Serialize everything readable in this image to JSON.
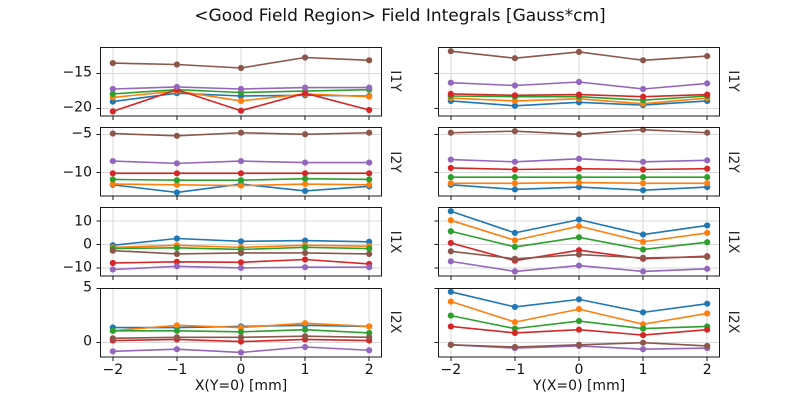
{
  "title": "<Good Field Region> Field Integrals [Gauss*cm]",
  "xticks": [
    {
      "value": -2,
      "label": "−2"
    },
    {
      "value": -1,
      "label": "−1"
    },
    {
      "value": 0,
      "label": "0"
    },
    {
      "value": 1,
      "label": "1"
    },
    {
      "value": 2,
      "label": "2"
    }
  ],
  "chart_data": [
    {
      "type": "line",
      "row_label": "I1Y",
      "col": "left",
      "x": [
        -2,
        -1,
        0,
        1,
        2
      ],
      "xlim": [
        -2.2,
        2.2
      ],
      "ylim": [
        -21.1,
        -11.2
      ],
      "yticks": [
        {
          "value": -15,
          "label": "−15"
        },
        {
          "value": -20,
          "label": "−20"
        }
      ],
      "show_ytick_labels": true,
      "show_xtick_labels": false,
      "series": [
        {
          "name": "series-blue",
          "color": "#1f77b4",
          "values": [
            -19.0,
            -17.8,
            -18.2,
            -18.1,
            -18.2
          ]
        },
        {
          "name": "series-orange",
          "color": "#ff7f0e",
          "values": [
            -18.4,
            -17.5,
            -18.9,
            -17.9,
            -18.3
          ]
        },
        {
          "name": "series-green",
          "color": "#2ca02c",
          "values": [
            -17.9,
            -17.3,
            -17.7,
            -17.5,
            -17.3
          ]
        },
        {
          "name": "series-red",
          "color": "#d62728",
          "values": [
            -20.4,
            -17.3,
            -20.3,
            -17.8,
            -20.2
          ]
        },
        {
          "name": "series-purple",
          "color": "#9467bd",
          "values": [
            -17.2,
            -16.9,
            -17.2,
            -17.0,
            -17.0
          ]
        },
        {
          "name": "series-brown",
          "color": "#8c564b",
          "values": [
            -13.5,
            -13.7,
            -14.2,
            -12.7,
            -13.1
          ]
        }
      ]
    },
    {
      "type": "line",
      "row_label": "I1Y",
      "col": "right",
      "x": [
        -2,
        -1,
        0,
        1,
        2
      ],
      "xlim": [
        -2.2,
        2.2
      ],
      "ylim": [
        -21.1,
        -11.2
      ],
      "yticks": [
        {
          "value": -15,
          "label": "−15"
        },
        {
          "value": -20,
          "label": "−20"
        }
      ],
      "show_ytick_labels": false,
      "show_xtick_labels": false,
      "series": [
        {
          "name": "series-blue",
          "color": "#1f77b4",
          "values": [
            -18.9,
            -19.6,
            -19.1,
            -19.5,
            -18.9
          ]
        },
        {
          "name": "series-orange",
          "color": "#ff7f0e",
          "values": [
            -18.5,
            -18.9,
            -18.6,
            -19.3,
            -18.5
          ]
        },
        {
          "name": "series-green",
          "color": "#2ca02c",
          "values": [
            -18.2,
            -18.3,
            -18.3,
            -18.8,
            -18.2
          ]
        },
        {
          "name": "series-red",
          "color": "#d62728",
          "values": [
            -17.9,
            -18.1,
            -18.0,
            -18.3,
            -18.0
          ]
        },
        {
          "name": "series-purple",
          "color": "#9467bd",
          "values": [
            -16.3,
            -16.7,
            -16.2,
            -17.2,
            -16.4
          ]
        },
        {
          "name": "series-brown",
          "color": "#8c564b",
          "values": [
            -11.8,
            -12.8,
            -11.9,
            -13.1,
            -12.5
          ]
        }
      ]
    },
    {
      "type": "line",
      "row_label": "I2Y",
      "col": "left",
      "x": [
        -2,
        -1,
        0,
        1,
        2
      ],
      "xlim": [
        -2.2,
        2.2
      ],
      "ylim": [
        -13.1,
        -4.05
      ],
      "yticks": [
        {
          "value": -5,
          "label": "−5"
        },
        {
          "value": -10,
          "label": "−10"
        }
      ],
      "show_ytick_labels": true,
      "show_xtick_labels": false,
      "series": [
        {
          "name": "series-blue",
          "color": "#1f77b4",
          "values": [
            -11.6,
            -12.6,
            -11.5,
            -12.4,
            -11.8
          ]
        },
        {
          "name": "series-orange",
          "color": "#ff7f0e",
          "values": [
            -11.5,
            -11.6,
            -11.7,
            -11.5,
            -11.6
          ]
        },
        {
          "name": "series-green",
          "color": "#2ca02c",
          "values": [
            -10.9,
            -11.0,
            -11.0,
            -10.8,
            -10.9
          ]
        },
        {
          "name": "series-red",
          "color": "#d62728",
          "values": [
            -10.1,
            -10.1,
            -10.1,
            -10.1,
            -10.1
          ]
        },
        {
          "name": "series-purple",
          "color": "#9467bd",
          "values": [
            -8.5,
            -8.8,
            -8.5,
            -8.7,
            -8.7
          ]
        },
        {
          "name": "series-brown",
          "color": "#8c564b",
          "values": [
            -4.9,
            -5.2,
            -4.8,
            -5.0,
            -4.8
          ]
        }
      ]
    },
    {
      "type": "line",
      "row_label": "I2Y",
      "col": "right",
      "x": [
        -2,
        -1,
        0,
        1,
        2
      ],
      "xlim": [
        -2.2,
        2.2
      ],
      "ylim": [
        -13.1,
        -4.05
      ],
      "yticks": [
        {
          "value": -5,
          "label": "−5"
        },
        {
          "value": -10,
          "label": "−10"
        }
      ],
      "show_ytick_labels": false,
      "show_xtick_labels": false,
      "series": [
        {
          "name": "series-blue",
          "color": "#1f77b4",
          "values": [
            -11.6,
            -12.2,
            -11.9,
            -12.3,
            -11.9
          ]
        },
        {
          "name": "series-orange",
          "color": "#ff7f0e",
          "values": [
            -11.4,
            -11.4,
            -11.3,
            -11.4,
            -11.4
          ]
        },
        {
          "name": "series-green",
          "color": "#2ca02c",
          "values": [
            -10.6,
            -10.6,
            -10.6,
            -10.6,
            -10.6
          ]
        },
        {
          "name": "series-red",
          "color": "#d62728",
          "values": [
            -9.4,
            -9.6,
            -9.5,
            -9.6,
            -9.5
          ]
        },
        {
          "name": "series-purple",
          "color": "#9467bd",
          "values": [
            -8.3,
            -8.6,
            -8.2,
            -8.6,
            -8.4
          ]
        },
        {
          "name": "series-brown",
          "color": "#8c564b",
          "values": [
            -4.8,
            -4.6,
            -5.0,
            -4.4,
            -4.8
          ]
        }
      ]
    },
    {
      "type": "line",
      "row_label": "I1X",
      "col": "left",
      "x": [
        -2,
        -1,
        0,
        1,
        2
      ],
      "xlim": [
        -2.2,
        2.2
      ],
      "ylim": [
        -13.6,
        16.1
      ],
      "yticks": [
        {
          "value": 10,
          "label": "10"
        },
        {
          "value": 0,
          "label": "0"
        },
        {
          "value": -10,
          "label": "−10"
        }
      ],
      "show_ytick_labels": true,
      "show_xtick_labels": false,
      "series": [
        {
          "name": "series-blue",
          "color": "#1f77b4",
          "values": [
            -0.3,
            2.6,
            1.4,
            1.7,
            1.2
          ]
        },
        {
          "name": "series-orange",
          "color": "#ff7f0e",
          "values": [
            -1.2,
            -0.3,
            -1.2,
            -0.3,
            -0.7
          ]
        },
        {
          "name": "series-green",
          "color": "#2ca02c",
          "values": [
            -1.7,
            -1.4,
            -2.1,
            -1.2,
            -1.7
          ]
        },
        {
          "name": "series-red",
          "color": "#d62728",
          "values": [
            -7.9,
            -7.4,
            -7.6,
            -6.4,
            -8.3
          ]
        },
        {
          "name": "series-purple",
          "color": "#9467bd",
          "values": [
            -10.7,
            -9.3,
            -10.0,
            -9.7,
            -9.7
          ]
        },
        {
          "name": "series-brown",
          "color": "#8c564b",
          "values": [
            -2.6,
            -4.0,
            -3.6,
            -3.6,
            -4.0
          ]
        }
      ]
    },
    {
      "type": "line",
      "row_label": "I1X",
      "col": "right",
      "x": [
        -2,
        -1,
        0,
        1,
        2
      ],
      "xlim": [
        -2.2,
        2.2
      ],
      "ylim": [
        -13.6,
        16.1
      ],
      "yticks": [
        {
          "value": 10,
          "label": "10"
        },
        {
          "value": 0,
          "label": "0"
        },
        {
          "value": -10,
          "label": "−10"
        }
      ],
      "show_ytick_labels": false,
      "show_xtick_labels": false,
      "series": [
        {
          "name": "series-blue",
          "color": "#1f77b4",
          "values": [
            14.3,
            5.0,
            10.7,
            4.3,
            8.2
          ]
        },
        {
          "name": "series-orange",
          "color": "#ff7f0e",
          "values": [
            10.4,
            1.8,
            7.9,
            1.2,
            5.0
          ]
        },
        {
          "name": "series-green",
          "color": "#2ca02c",
          "values": [
            5.7,
            -1.0,
            3.1,
            -2.1,
            1.0
          ]
        },
        {
          "name": "series-red",
          "color": "#d62728",
          "values": [
            0.7,
            -6.9,
            -2.4,
            -6.1,
            -5.0
          ]
        },
        {
          "name": "series-purple",
          "color": "#9467bd",
          "values": [
            -7.2,
            -11.5,
            -9.0,
            -11.5,
            -10.4
          ]
        },
        {
          "name": "series-brown",
          "color": "#8c564b",
          "values": [
            -2.9,
            -6.1,
            -4.3,
            -5.7,
            -5.3
          ]
        }
      ]
    },
    {
      "type": "line",
      "row_label": "I2X",
      "col": "left",
      "x": [
        -2,
        -1,
        0,
        1,
        2
      ],
      "xlim": [
        -2.2,
        2.2
      ],
      "ylim": [
        -1.35,
        5.05
      ],
      "yticks": [
        {
          "value": 5,
          "label": "5"
        },
        {
          "value": 0,
          "label": "0"
        }
      ],
      "show_ytick_labels": true,
      "show_xtick_labels": true,
      "xlabel": "X(Y=0) [mm]",
      "series": [
        {
          "name": "series-blue",
          "color": "#1f77b4",
          "values": [
            1.4,
            1.4,
            1.5,
            1.6,
            1.5
          ]
        },
        {
          "name": "series-orange",
          "color": "#ff7f0e",
          "values": [
            1.1,
            1.6,
            1.4,
            1.8,
            1.5
          ]
        },
        {
          "name": "series-green",
          "color": "#2ca02c",
          "values": [
            1.1,
            1.1,
            1.0,
            1.2,
            0.9
          ]
        },
        {
          "name": "series-red",
          "color": "#d62728",
          "values": [
            0.2,
            0.3,
            0.1,
            0.3,
            0.2
          ]
        },
        {
          "name": "series-purple",
          "color": "#9467bd",
          "values": [
            -0.8,
            -0.6,
            -0.9,
            -0.4,
            -0.7
          ]
        },
        {
          "name": "series-brown",
          "color": "#8c564b",
          "values": [
            0.4,
            0.5,
            0.5,
            0.6,
            0.5
          ]
        }
      ]
    },
    {
      "type": "line",
      "row_label": "I2X",
      "col": "right",
      "x": [
        -2,
        -1,
        0,
        1,
        2
      ],
      "xlim": [
        -2.2,
        2.2
      ],
      "ylim": [
        -1.35,
        5.05
      ],
      "yticks": [
        {
          "value": 5,
          "label": "5"
        },
        {
          "value": 0,
          "label": "0"
        }
      ],
      "show_ytick_labels": false,
      "show_xtick_labels": true,
      "xlabel": "Y(X=0) [mm]",
      "series": [
        {
          "name": "series-blue",
          "color": "#1f77b4",
          "values": [
            4.7,
            3.3,
            4.0,
            2.8,
            3.6
          ]
        },
        {
          "name": "series-orange",
          "color": "#ff7f0e",
          "values": [
            3.8,
            1.9,
            3.1,
            1.7,
            2.7
          ]
        },
        {
          "name": "series-green",
          "color": "#2ca02c",
          "values": [
            2.5,
            1.3,
            2.0,
            1.3,
            1.5
          ]
        },
        {
          "name": "series-red",
          "color": "#d62728",
          "values": [
            1.5,
            0.9,
            1.2,
            0.7,
            1.2
          ]
        },
        {
          "name": "series-purple",
          "color": "#9467bd",
          "values": [
            -0.2,
            -0.5,
            -0.3,
            -0.6,
            -0.5
          ]
        },
        {
          "name": "series-brown",
          "color": "#8c564b",
          "values": [
            -0.2,
            -0.4,
            -0.2,
            0.0,
            -0.3
          ]
        }
      ]
    }
  ],
  "style": {
    "grid_color": "#d9d9d9",
    "frame_color": "#1a1a1a",
    "tick_color": "#1a1a1a"
  }
}
